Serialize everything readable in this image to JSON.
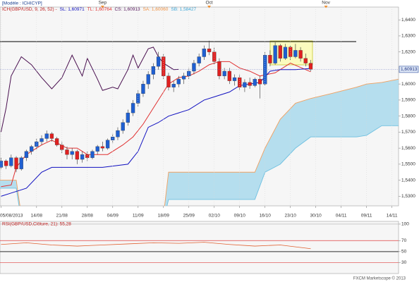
{
  "chart_data": [
    {
      "type": "candlestick",
      "model_label": "[Modèle : ICHICYP]",
      "indicator_label": "ICH(GBP/USD, 9, 26, 52) -",
      "indicator_parts": [
        {
          "text": "SL: 1,60971",
          "color": "#1010c0"
        },
        {
          "text": "TL: 1,60764",
          "color": "#e03030"
        },
        {
          "text": "CS: 1,60913",
          "color": "#5a1a60"
        },
        {
          "text": "SA: 1,60060",
          "color": "#f09040"
        },
        {
          "text": "SB: 1,58427",
          "color": "#40a8d8"
        }
      ],
      "price_label": "1,60913",
      "footer": "FXCM Marketscope © 2013",
      "up_color": "#1f5fd1",
      "down_color": "#e02020",
      "x": [
        0,
        1,
        2,
        3,
        4,
        5,
        6,
        7,
        8,
        9,
        10,
        11,
        12,
        13,
        14,
        15,
        16,
        17,
        18,
        19,
        20,
        21,
        22,
        23,
        24,
        25,
        26,
        27,
        28,
        29,
        30,
        31,
        32,
        33,
        34,
        35,
        36,
        37,
        38,
        39,
        40,
        41,
        42,
        43,
        44,
        45,
        46,
        47,
        48,
        49,
        50,
        51,
        52,
        53,
        54,
        55,
        56,
        57,
        58,
        59,
        60,
        61
      ],
      "open": [
        1.548,
        1.552,
        1.549,
        1.554,
        1.547,
        1.554,
        1.558,
        1.561,
        1.564,
        1.566,
        1.569,
        1.566,
        1.562,
        1.559,
        1.556,
        1.558,
        1.553,
        1.556,
        1.554,
        1.558,
        1.561,
        1.56,
        1.565,
        1.567,
        1.571,
        1.576,
        1.582,
        1.588,
        1.594,
        1.6,
        1.606,
        1.611,
        1.617,
        1.605,
        1.598,
        1.6,
        1.603,
        1.605,
        1.608,
        1.613,
        1.617,
        1.622,
        1.62,
        1.614,
        1.605,
        1.608,
        1.602,
        1.604,
        1.598,
        1.601,
        1.599,
        1.603,
        1.6,
        1.618,
        1.613,
        1.624,
        1.616,
        1.623,
        1.617,
        1.621,
        1.616,
        1.613
      ],
      "high": [
        1.554,
        1.553,
        1.556,
        1.555,
        1.555,
        1.559,
        1.562,
        1.566,
        1.568,
        1.571,
        1.57,
        1.567,
        1.564,
        1.561,
        1.56,
        1.559,
        1.558,
        1.558,
        1.559,
        1.562,
        1.564,
        1.566,
        1.569,
        1.573,
        1.578,
        1.584,
        1.59,
        1.596,
        1.602,
        1.608,
        1.613,
        1.62,
        1.619,
        1.607,
        1.602,
        1.605,
        1.607,
        1.61,
        1.615,
        1.619,
        1.624,
        1.627,
        1.623,
        1.616,
        1.61,
        1.61,
        1.606,
        1.606,
        1.603,
        1.604,
        1.604,
        1.605,
        1.62,
        1.621,
        1.626,
        1.625,
        1.625,
        1.624,
        1.625,
        1.623,
        1.619,
        1.615
      ],
      "low": [
        1.547,
        1.547,
        1.548,
        1.545,
        1.546,
        1.552,
        1.556,
        1.559,
        1.562,
        1.564,
        1.564,
        1.561,
        1.557,
        1.553,
        1.553,
        1.55,
        1.551,
        1.552,
        1.553,
        1.556,
        1.558,
        1.559,
        1.563,
        1.565,
        1.569,
        1.574,
        1.58,
        1.586,
        1.592,
        1.597,
        1.603,
        1.609,
        1.603,
        1.596,
        1.595,
        1.598,
        1.6,
        1.603,
        1.606,
        1.611,
        1.615,
        1.618,
        1.612,
        1.603,
        1.603,
        1.6,
        1.599,
        1.596,
        1.595,
        1.597,
        1.598,
        1.591,
        1.599,
        1.611,
        1.612,
        1.614,
        1.615,
        1.615,
        1.616,
        1.614,
        1.611,
        1.608
      ],
      "close": [
        1.552,
        1.549,
        1.554,
        1.547,
        1.554,
        1.558,
        1.561,
        1.564,
        1.566,
        1.569,
        1.566,
        1.562,
        1.559,
        1.556,
        1.558,
        1.553,
        1.556,
        1.554,
        1.558,
        1.561,
        1.56,
        1.565,
        1.567,
        1.571,
        1.576,
        1.582,
        1.588,
        1.594,
        1.6,
        1.606,
        1.611,
        1.617,
        1.605,
        1.598,
        1.6,
        1.603,
        1.605,
        1.608,
        1.613,
        1.617,
        1.622,
        1.62,
        1.614,
        1.605,
        1.608,
        1.602,
        1.604,
        1.598,
        1.601,
        1.599,
        1.603,
        1.6,
        1.618,
        1.613,
        1.624,
        1.616,
        1.623,
        1.617,
        1.621,
        1.616,
        1.613,
        1.60913
      ],
      "overlays": [
        {
          "color": "#e03030",
          "x": [
            0,
            2,
            3,
            5,
            8,
            10,
            13,
            15,
            17,
            19,
            21,
            24,
            26,
            28,
            30,
            31,
            33,
            35,
            37,
            39,
            41,
            43,
            45,
            47,
            49,
            51,
            54,
            57,
            61
          ],
          "values": [
            1.536,
            1.537,
            1.548,
            1.556,
            1.562,
            1.565,
            1.56,
            1.56,
            1.556,
            1.556,
            1.556,
            1.562,
            1.567,
            1.575,
            1.585,
            1.59,
            1.6,
            1.604,
            1.605,
            1.608,
            1.612,
            1.614,
            1.614,
            1.61,
            1.608,
            1.605,
            1.607,
            1.613,
            1.60764
          ]
        },
        {
          "color": "#1010c0",
          "x": [
            0,
            2,
            5,
            8,
            10,
            13,
            16,
            20,
            25,
            27,
            29,
            31,
            33,
            35,
            37,
            40,
            42,
            45,
            47,
            49,
            51,
            53,
            55,
            58,
            61
          ],
          "values": [
            1.53,
            1.532,
            1.535,
            1.545,
            1.548,
            1.548,
            1.548,
            1.548,
            1.55,
            1.558,
            1.573,
            1.576,
            1.58,
            1.582,
            1.584,
            1.59,
            1.592,
            1.595,
            1.599,
            1.6,
            1.601,
            1.608,
            1.609,
            1.609,
            1.60971
          ]
        },
        {
          "color": "#4a1050",
          "x": [
            0,
            1,
            2,
            4,
            6,
            8,
            10,
            12,
            14,
            16,
            17,
            19,
            20,
            22,
            23,
            25,
            26,
            27,
            29,
            30,
            31,
            32,
            34,
            35
          ],
          "values": [
            1.57,
            1.585,
            1.605,
            1.617,
            1.612,
            1.604,
            1.597,
            1.604,
            1.618,
            1.605,
            1.616,
            1.603,
            1.596,
            1.598,
            1.597,
            1.609,
            1.618,
            1.61,
            1.622,
            1.623,
            1.617,
            1.613,
            1.609,
            1.60913
          ]
        }
      ],
      "cloud": {
        "x": [
          -0.2,
          3,
          4,
          32,
          33,
          50,
          52,
          55,
          58,
          61,
          65,
          70,
          72,
          75,
          78.3
        ],
        "span_a": [
          1.535,
          1.535,
          1.515,
          1.515,
          1.528,
          1.528,
          1.545,
          1.55,
          1.56,
          1.567,
          1.567,
          1.567,
          1.568,
          1.574,
          1.574
        ],
        "span_b": [
          1.54,
          1.54,
          1.518,
          1.518,
          1.545,
          1.545,
          1.56,
          1.578,
          1.588,
          1.591,
          1.594,
          1.598,
          1.6,
          1.601,
          1.603
        ],
        "span_a_color": "#6ec0e0",
        "span_b_color": "#f0a060",
        "fill": "#a9d9ec"
      },
      "xlim": [
        -0.2,
        78.3
      ],
      "xticks": [
        {
          "value": 0,
          "label": "05/08/2013"
        },
        {
          "value": 7,
          "label": "14/08"
        },
        {
          "value": 12,
          "label": "21/08"
        },
        {
          "value": 17,
          "label": "28/08"
        },
        {
          "value": 22,
          "label": "04/09"
        },
        {
          "value": 27,
          "label": "11/09"
        },
        {
          "value": 32,
          "label": "18/09"
        },
        {
          "value": 37,
          "label": "25/09"
        },
        {
          "value": 42,
          "label": "02/10"
        },
        {
          "value": 47,
          "label": "09/10"
        },
        {
          "value": 52,
          "label": "16/10"
        },
        {
          "value": 57,
          "label": "23/10"
        },
        {
          "value": 62,
          "label": "30/10"
        },
        {
          "value": 67,
          "label": "04/11"
        },
        {
          "value": 72,
          "label": "09/11"
        },
        {
          "value": 77,
          "label": "14/11"
        }
      ],
      "month_ticks": [
        {
          "value": 20,
          "label": "Sep"
        },
        {
          "value": 41,
          "label": "Oct"
        },
        {
          "value": 64,
          "label": "Nov"
        }
      ],
      "ylim": [
        1.524,
        1.648
      ],
      "yticks": [
        {
          "value": 1.53,
          "label": "1,5300"
        },
        {
          "value": 1.54,
          "label": "1,5400"
        },
        {
          "value": 1.55,
          "label": "1,5500"
        },
        {
          "value": 1.56,
          "label": "1,5600"
        },
        {
          "value": 1.57,
          "label": "1,5700"
        },
        {
          "value": 1.58,
          "label": "1,5800"
        },
        {
          "value": 1.59,
          "label": "1,5900"
        },
        {
          "value": 1.6,
          "label": "1,6000"
        },
        {
          "value": 1.62,
          "label": "1,6200"
        },
        {
          "value": 1.63,
          "label": "1,6300"
        },
        {
          "value": 1.64,
          "label": "1,6400"
        }
      ],
      "grid": true
    },
    {
      "type": "line",
      "title": "RSI(GBP/USD,Clôture, 21): 55,28",
      "color": "#e06030",
      "x": [
        0,
        5,
        10,
        15,
        20,
        25,
        30,
        35,
        40,
        45,
        50,
        55,
        61
      ],
      "values": [
        63,
        66,
        62,
        60,
        62,
        64,
        66,
        65,
        67,
        63,
        60,
        62,
        55.28
      ],
      "xlim": [
        -0.2,
        78.3
      ],
      "ylim": [
        10,
        105
      ],
      "yticks": [
        100,
        70,
        50,
        30
      ],
      "grid_colors": [
        "#bbbbbb",
        "#e04040",
        "#555555",
        "#e04040"
      ]
    }
  ]
}
